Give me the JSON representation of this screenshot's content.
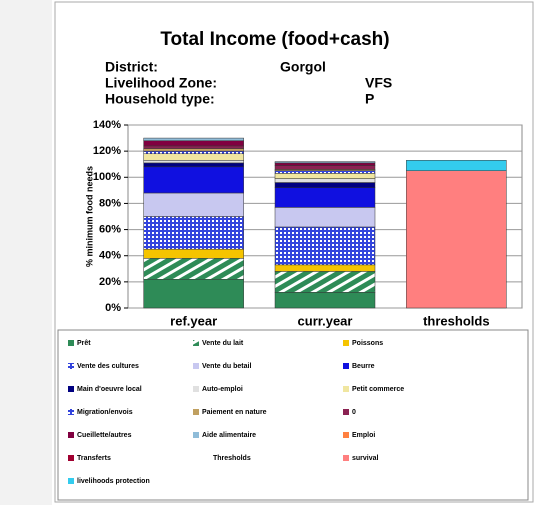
{
  "chart_data": {
    "type": "stacked_bar",
    "title": "Total Income (food+cash)",
    "info": [
      {
        "label": "District:",
        "value": "Gorgol"
      },
      {
        "label": "Livelihood Zone:",
        "value": "VFS"
      },
      {
        "label": "Household type:",
        "value": "P"
      }
    ],
    "y_label": "% minimum food needs",
    "categories": [
      "ref.year",
      "curr.year",
      "thresholds"
    ],
    "ylim": [
      0,
      140
    ],
    "yticks": [
      {
        "value": 0,
        "label": "0%"
      },
      {
        "value": 20,
        "label": "20%"
      },
      {
        "value": 40,
        "label": "40%"
      },
      {
        "value": 60,
        "label": "60%"
      },
      {
        "value": 80,
        "label": "80%"
      },
      {
        "value": 100,
        "label": "100%"
      },
      {
        "value": 120,
        "label": "120%"
      },
      {
        "value": 140,
        "label": "140%"
      }
    ],
    "series": [
      {
        "name": "Prêt",
        "color": "#2e8b57",
        "values": [
          22,
          12,
          null
        ]
      },
      {
        "name": "Vente du lait",
        "color": "#2e8b57",
        "pattern": "hatch",
        "values": [
          16,
          16,
          null
        ]
      },
      {
        "name": "Poissons",
        "color": "#f5c400",
        "values": [
          7,
          5,
          null
        ]
      },
      {
        "name": "Vente des cultures",
        "color": "#3344dd",
        "pattern": "dots",
        "values": [
          25,
          29,
          null
        ]
      },
      {
        "name": "Vente du betail",
        "color": "#c8c8f0",
        "values": [
          18,
          15,
          null
        ]
      },
      {
        "name": "Beurre",
        "color": "#1010e0",
        "values": [
          20,
          15,
          null
        ]
      },
      {
        "name": "Main d'oeuvre local",
        "color": "#000080",
        "values": [
          3,
          4,
          null
        ]
      },
      {
        "name": "Auto-emploi",
        "color": "#e0e0e0",
        "values": [
          2,
          3,
          null
        ]
      },
      {
        "name": "Petit commerce",
        "color": "#f0e6a0",
        "values": [
          5,
          4,
          null
        ]
      },
      {
        "name": "Migration/envois",
        "color": "#808000",
        "pattern": "dots",
        "values": [
          2,
          2,
          null
        ]
      },
      {
        "name": "Paiement en nature",
        "color": "#c0a060",
        "values": [
          2,
          1,
          null
        ]
      },
      {
        "name": "0",
        "color": "#8b2252",
        "values": [
          2,
          3,
          null
        ]
      },
      {
        "name": "Cueillette/autres",
        "color": "#800040",
        "values": [
          4,
          2,
          null
        ]
      },
      {
        "name": "Aide alimentaire",
        "color": "#8fbcd8",
        "values": [
          2,
          1,
          null
        ]
      },
      {
        "name": "Emploi",
        "color": "#ff8040",
        "values": [
          0,
          0,
          null
        ]
      },
      {
        "name": "Transferts",
        "color": "#a00030",
        "values": [
          0,
          0,
          null
        ]
      },
      {
        "name": "Thresholds",
        "color": "none",
        "values": [
          null,
          null,
          null
        ]
      },
      {
        "name": "survival",
        "color": "#ff7f7f",
        "values": [
          null,
          null,
          105
        ]
      },
      {
        "name": "livelihoods protection",
        "color": "#33ccee",
        "values": [
          null,
          null,
          8
        ]
      }
    ]
  }
}
